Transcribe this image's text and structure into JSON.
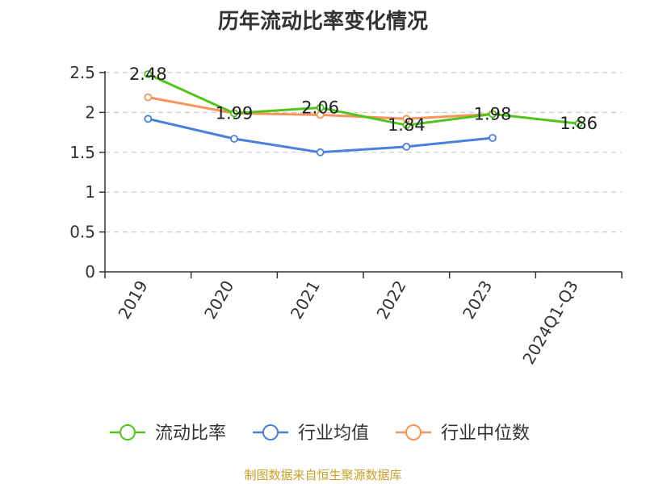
{
  "chart_data": {
    "type": "line",
    "title": "历年流动比率变化情况",
    "categories": [
      "2019",
      "2020",
      "2021",
      "2022",
      "2023",
      "2024Q1-Q3"
    ],
    "ylim": [
      0,
      2.5
    ],
    "yticks": [
      "0",
      "0.5",
      "1",
      "1.5",
      "2",
      "2.5"
    ],
    "grid": true,
    "legend_position": "bottom",
    "series": [
      {
        "name": "流动比率",
        "color": "#52c41a",
        "values": [
          2.48,
          1.99,
          2.06,
          1.84,
          1.98,
          1.86
        ],
        "labels": [
          "2.48",
          "1.99",
          "2.06",
          "1.84",
          "1.98",
          "1.86"
        ]
      },
      {
        "name": "行业均值",
        "color": "#4a7fdc",
        "values": [
          1.92,
          1.67,
          1.5,
          1.57,
          1.68,
          null
        ],
        "labels": []
      },
      {
        "name": "行业中位数",
        "color": "#f7935c",
        "values": [
          2.19,
          1.99,
          1.97,
          1.92,
          1.98,
          null
        ],
        "labels": []
      }
    ]
  },
  "source": "制图数据来自恒生聚源数据库"
}
